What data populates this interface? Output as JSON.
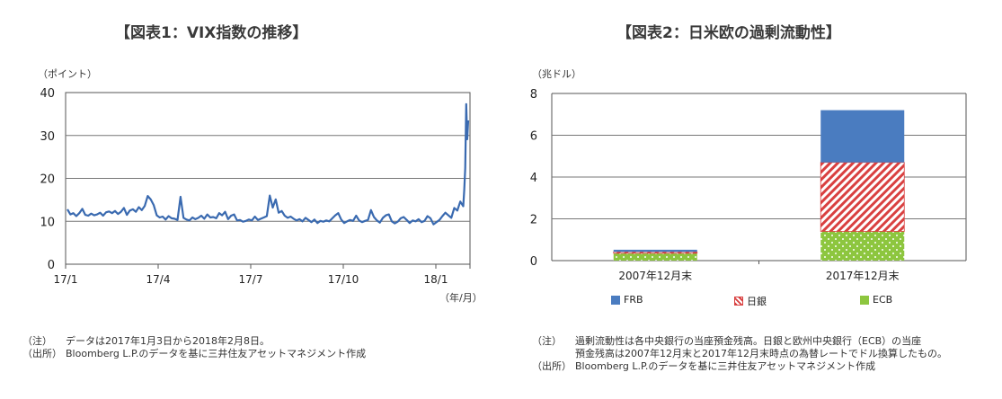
{
  "chart_data": [
    {
      "type": "line",
      "title": "【図表1：VIX指数の推移】",
      "unit_label": "（ポイント）",
      "x_unit_label": "（年/月）",
      "x_tick_labels": [
        "17/1",
        "17/4",
        "17/7",
        "17/10",
        "18/1"
      ],
      "y_tick_labels": [
        "0",
        "10",
        "20",
        "30",
        "40"
      ],
      "ylim": [
        0,
        40
      ],
      "grid": true,
      "series": [
        {
          "color": "#3a6ab0",
          "x": [
            0,
            3,
            6,
            9,
            12,
            15,
            18,
            21,
            24,
            27,
            30,
            33,
            36,
            39,
            42,
            45,
            48,
            51,
            54,
            57,
            60,
            63,
            66,
            69,
            72,
            75,
            78,
            81,
            84,
            87,
            90,
            93,
            96,
            99,
            102,
            105,
            108,
            111,
            114,
            117,
            120,
            123,
            126,
            129,
            132,
            135,
            138,
            141,
            144,
            147,
            150,
            153,
            156,
            159,
            162,
            165,
            168,
            171,
            174,
            177,
            180,
            183,
            186,
            189,
            192,
            195,
            198,
            201,
            204,
            207,
            210,
            213,
            216,
            219,
            222,
            225,
            228,
            231,
            234,
            237,
            240,
            243,
            246,
            249,
            252,
            255,
            258,
            261,
            264,
            267,
            270,
            273,
            276,
            279,
            282,
            285,
            288,
            291,
            294,
            297,
            300,
            303,
            306,
            309,
            312,
            315,
            318,
            321,
            324,
            327,
            330,
            333,
            336,
            339,
            342,
            345,
            348,
            351,
            354,
            357,
            360,
            363,
            366,
            369,
            372,
            375,
            378,
            381,
            384,
            387,
            390,
            393,
            396,
            399,
            400,
            401,
            402,
            403,
            404
          ],
          "values": [
            12.8,
            11.6,
            11.9,
            11.2,
            11.9,
            12.9,
            11.5,
            11.3,
            11.8,
            11.4,
            11.6,
            12.0,
            11.3,
            12.1,
            12.3,
            11.9,
            12.4,
            11.7,
            12.2,
            13.1,
            11.5,
            12.5,
            12.8,
            12.2,
            13.3,
            12.6,
            13.6,
            15.9,
            15.1,
            13.8,
            11.4,
            10.9,
            11.1,
            10.4,
            11.2,
            10.7,
            10.6,
            10.3,
            15.7,
            10.8,
            10.4,
            10.2,
            10.9,
            10.5,
            10.8,
            11.3,
            10.6,
            11.6,
            10.9,
            11.0,
            10.7,
            11.9,
            11.4,
            12.2,
            10.5,
            11.3,
            11.6,
            10.2,
            10.3,
            9.9,
            10.1,
            10.4,
            10.2,
            11.1,
            10.3,
            10.6,
            10.9,
            11.2,
            16.0,
            13.2,
            15.1,
            12.0,
            12.4,
            11.3,
            10.8,
            11.1,
            10.6,
            10.2,
            10.5,
            10.0,
            10.8,
            10.3,
            9.8,
            10.4,
            9.6,
            10.1,
            9.9,
            10.2,
            10.0,
            10.7,
            11.4,
            11.9,
            10.4,
            9.6,
            10.0,
            10.3,
            10.1,
            11.3,
            10.2,
            9.8,
            10.1,
            10.3,
            12.6,
            11.0,
            10.2,
            9.7,
            10.8,
            11.4,
            11.6,
            10.0,
            9.5,
            9.9,
            10.7,
            11.0,
            10.3,
            9.6,
            10.2,
            10.0,
            10.5,
            9.8,
            10.1,
            11.2,
            10.7,
            9.3,
            9.8,
            10.3,
            11.2,
            12.0,
            11.4,
            10.8,
            13.1,
            12.5,
            14.6,
            13.5,
            17.3,
            22.4,
            37.3,
            29.1,
            33.5
          ]
        }
      ]
    },
    {
      "type": "bar",
      "stacked": true,
      "title": "【図表2：日米欧の過剰流動性】",
      "unit_label": "（兆ドル）",
      "categories": [
        "2007年12月末",
        "2017年12月末"
      ],
      "y_tick_labels": [
        "0",
        "2",
        "4",
        "6",
        "8"
      ],
      "ylim": [
        0,
        8
      ],
      "grid": true,
      "series": [
        {
          "name": "ECB",
          "color": "#8dc63f",
          "values": [
            0.35,
            1.4
          ]
        },
        {
          "name": "日銀",
          "color": "#d94040",
          "values": [
            0.07,
            3.3
          ]
        },
        {
          "name": "FRB",
          "color": "#4a7cc0",
          "values": [
            0.1,
            2.5
          ]
        }
      ],
      "legend_order": [
        "FRB",
        "日銀",
        "ECB"
      ],
      "legend_position": "bottom"
    }
  ],
  "notes": {
    "left": [
      {
        "tag": "（注）",
        "text": "データは2017年1月3日から2018年2月8日。"
      },
      {
        "tag": "（出所）",
        "text": "Bloomberg L.P.のデータを基に三井住友アセットマネジメント作成"
      }
    ],
    "right": [
      {
        "tag": "（注）",
        "text": "過剰流動性は各中央銀行の当座預金残高。日銀と欧州中央銀行（ECB）の当座"
      },
      {
        "tag": "",
        "text": "預金残高は2007年12月末と2017年12月末時点の為替レートでドル換算したもの。"
      },
      {
        "tag": "（出所）",
        "text": "Bloomberg L.P.のデータを基に三井住友アセットマネジメント作成"
      }
    ]
  }
}
